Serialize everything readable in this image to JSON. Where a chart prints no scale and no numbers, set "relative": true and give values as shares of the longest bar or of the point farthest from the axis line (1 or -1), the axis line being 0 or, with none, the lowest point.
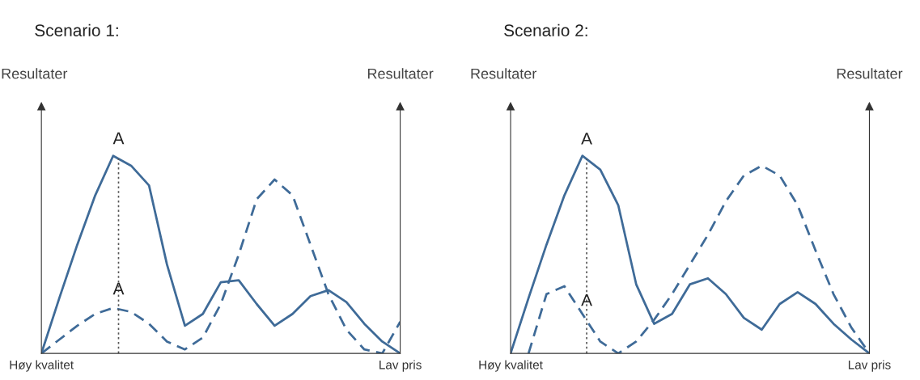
{
  "chart_data": [
    {
      "type": "line",
      "title": "Scenario 1:",
      "ylabel": "Resultater",
      "y2label": "Resultater",
      "relative": true,
      "grid": false,
      "legend": false,
      "marker": "none",
      "categories": [
        "Høy kvalitet",
        null,
        null,
        null,
        null,
        null,
        null,
        null,
        null,
        null,
        null,
        null,
        null,
        null,
        null,
        null,
        null,
        null,
        null,
        null,
        "Lav pris"
      ],
      "series": [
        {
          "color": "#3f6b98",
          "line_style": "solid",
          "values": [
            0,
            0.28,
            0.55,
            0.8,
            1,
            0.95,
            0.85,
            0.45,
            0.14,
            0.2,
            0.36,
            0.37,
            0.25,
            0.14,
            0.2,
            0.29,
            0.32,
            0.26,
            0.15,
            0.06,
            0
          ]
        },
        {
          "color": "#3f6b98",
          "line_style": "dashed",
          "values": [
            0,
            0.07,
            0.14,
            0.2,
            0.23,
            0.21,
            0.15,
            0.06,
            0.02,
            0.08,
            0.25,
            0.5,
            0.78,
            0.88,
            0.8,
            0.55,
            0.3,
            0.12,
            0.02,
            0,
            0.16
          ]
        }
      ],
      "annotations": [
        "A",
        "A"
      ]
    },
    {
      "type": "line",
      "title": "Scenario 2:",
      "ylabel": "Resultater",
      "y2label": "Resultater",
      "relative": true,
      "grid": false,
      "legend": false,
      "marker": "none",
      "categories": [
        "Høy kvalitet",
        null,
        null,
        null,
        null,
        null,
        null,
        null,
        null,
        null,
        null,
        null,
        null,
        null,
        null,
        null,
        null,
        null,
        null,
        null,
        "Lav pris"
      ],
      "series": [
        {
          "color": "#3f6b98",
          "line_style": "solid",
          "values": [
            0,
            0.28,
            0.55,
            0.8,
            1,
            0.93,
            0.75,
            0.35,
            0.15,
            0.2,
            0.35,
            0.38,
            0.3,
            0.18,
            0.12,
            0.25,
            0.31,
            0.25,
            0.15,
            0.07,
            0
          ]
        },
        {
          "color": "#3f6b98",
          "line_style": "dashed",
          "values": [
            null,
            0,
            0.3,
            0.34,
            0.2,
            0.06,
            0,
            0.06,
            0.17,
            0.3,
            0.45,
            0.6,
            0.77,
            0.9,
            0.95,
            0.9,
            0.75,
            0.52,
            0.3,
            0.13,
            0
          ]
        }
      ],
      "annotations": [
        "A",
        "A"
      ]
    }
  ]
}
